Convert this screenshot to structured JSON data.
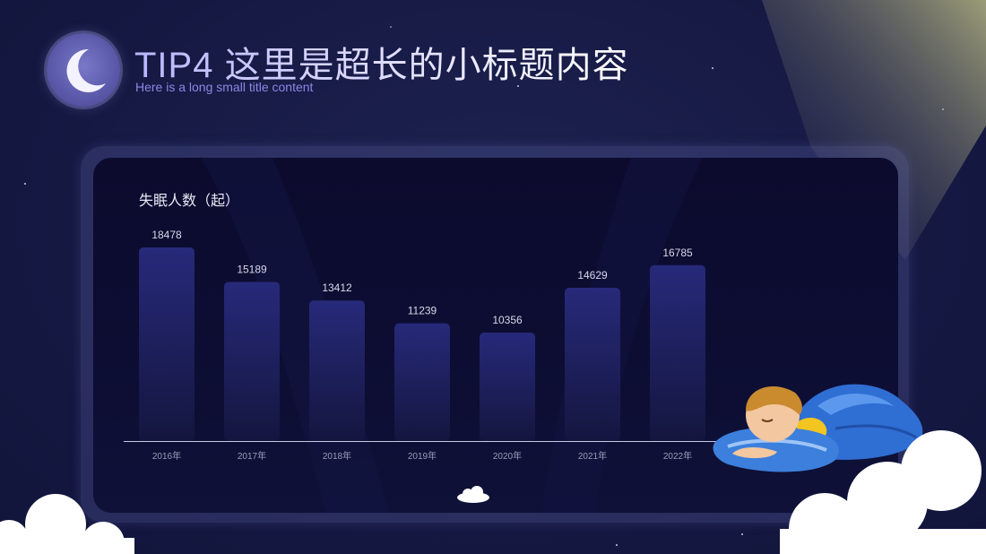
{
  "header": {
    "title": "TIP4 这里是超长的小标题内容",
    "subtitle": "Here is a long small title content",
    "icon": "crescent-moon-icon"
  },
  "colors": {
    "background": "#161a44",
    "bar_top": "#27297a",
    "bar_bottom": "#14163f",
    "title_accent": "#b9b6ff",
    "subtitle": "#8d86e6"
  },
  "chart_data": {
    "type": "bar",
    "title": "",
    "ylabel": "失眠人数（起）",
    "xlabel": "",
    "categories": [
      "2016年",
      "2017年",
      "2018年",
      "2019年",
      "2020年",
      "2021年",
      "2022年"
    ],
    "values": [
      18478,
      15189,
      13412,
      11239,
      10356,
      14629,
      16785
    ],
    "data_labels": [
      "18478",
      "15189",
      "13412",
      "11239",
      "10356",
      "14629",
      "16785"
    ],
    "ylim": [
      0,
      20000
    ],
    "grid": false,
    "legend": "none"
  },
  "decorations": [
    "cloud-icon",
    "sleeping-boy-illustration",
    "light-beam"
  ]
}
